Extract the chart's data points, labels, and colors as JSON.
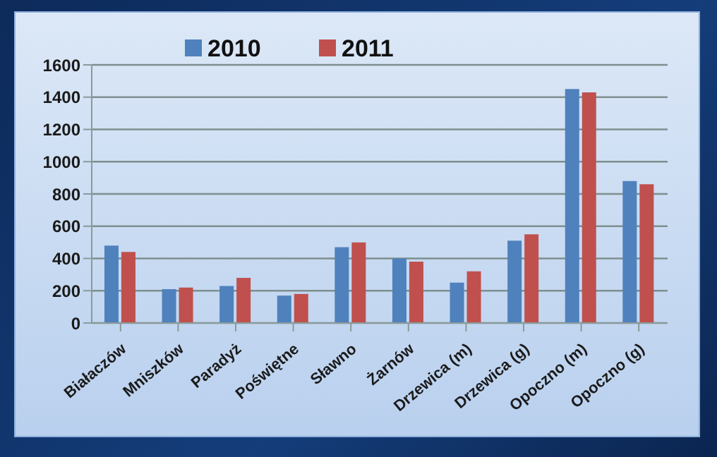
{
  "chart_data": {
    "type": "bar",
    "categories": [
      "Białaczów",
      "Mniszków",
      "Paradyż",
      "Poświętne",
      "Sławno",
      "Żarnów",
      "Drzewica (m)",
      "Drzewica (g)",
      "Opoczno (m)",
      "Opoczno (g)"
    ],
    "series": [
      {
        "name": "2010",
        "color": "#4f81bd",
        "values": [
          480,
          210,
          230,
          170,
          470,
          400,
          250,
          510,
          1450,
          880
        ]
      },
      {
        "name": "2011",
        "color": "#c0504d",
        "values": [
          440,
          220,
          280,
          180,
          500,
          380,
          320,
          550,
          1430,
          860
        ]
      }
    ],
    "ylim": [
      0,
      1600
    ],
    "yticks": [
      0,
      200,
      400,
      600,
      800,
      1000,
      1200,
      1400,
      1600
    ],
    "grid": "y",
    "legend": "top"
  }
}
